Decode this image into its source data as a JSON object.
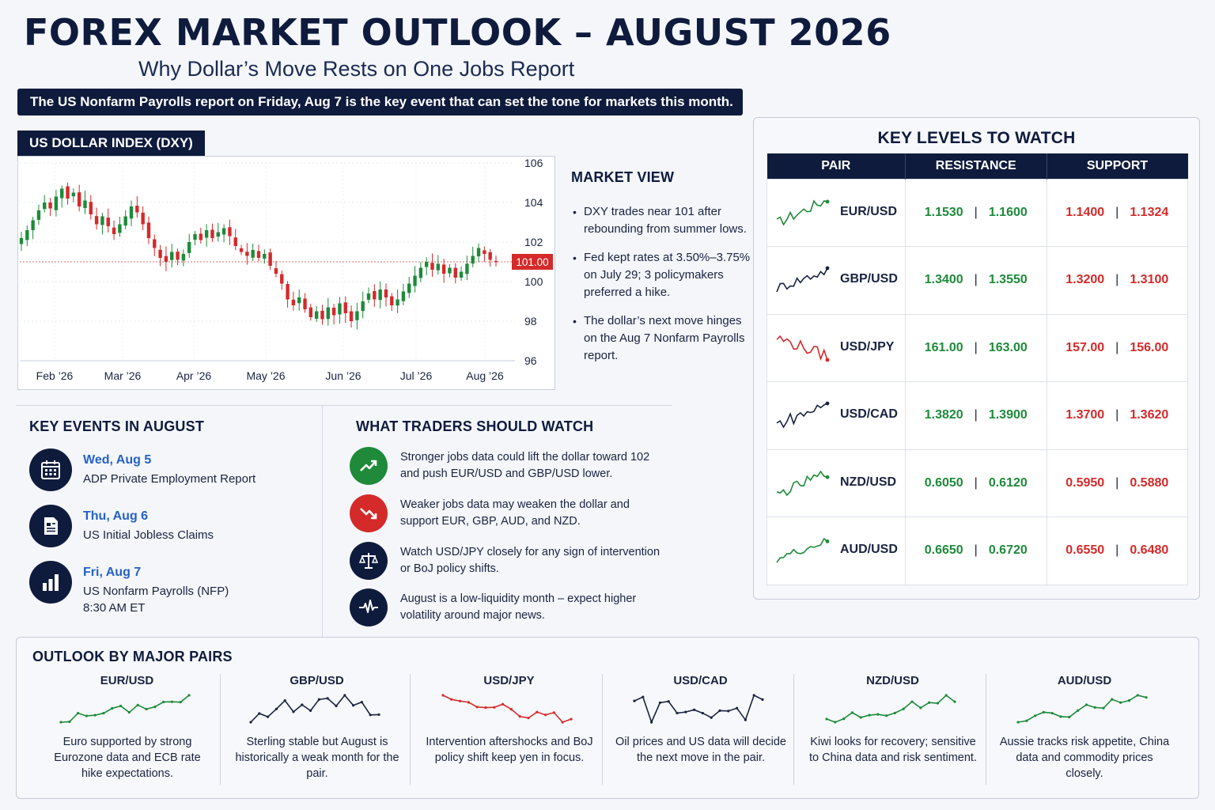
{
  "header": {
    "title": "FOREX MARKET OUTLOOK – AUGUST 2026",
    "subtitle": "Why Dollar’s Move Rests on One Jobs Report",
    "banner": "The US Nonfarm Payrolls report on Friday, Aug 7 is the key event that can set the tone for markets this month."
  },
  "chart_data": {
    "type": "candlestick",
    "title": "US DOLLAR INDEX (DXY)",
    "x_labels": [
      "Feb ’26",
      "Mar ’26",
      "Apr ’26",
      "May ’26",
      "Jun ’26",
      "Jul ’26",
      "Aug ’26"
    ],
    "y_ticks": [
      96,
      98,
      100,
      102,
      104,
      106
    ],
    "ylim": [
      96,
      106
    ],
    "current_value_label": "101.00",
    "current_value": 101.0,
    "approx_closes": [
      102.2,
      102.6,
      103.1,
      103.6,
      104.0,
      103.7,
      104.3,
      104.7,
      104.2,
      104.5,
      103.8,
      104.1,
      103.4,
      102.9,
      103.3,
      102.8,
      102.4,
      102.9,
      103.3,
      103.8,
      103.5,
      102.9,
      102.2,
      101.7,
      101.2,
      101.0,
      101.5,
      101.1,
      101.4,
      102.0,
      102.4,
      102.1,
      102.6,
      102.2,
      102.5,
      102.7,
      102.3,
      101.8,
      101.5,
      101.3,
      101.6,
      101.2,
      101.4,
      100.8,
      100.4,
      99.9,
      99.1,
      98.8,
      99.2,
      98.6,
      98.2,
      98.5,
      98.1,
      98.7,
      98.3,
      98.9,
      98.4,
      98.0,
      98.5,
      99.0,
      99.4,
      99.1,
      99.6,
      99.2,
      98.8,
      99.1,
      99.5,
      99.9,
      100.3,
      100.7,
      101.0,
      100.6,
      100.9,
      100.4,
      100.7,
      100.2,
      100.5,
      100.9,
      101.3,
      101.7,
      101.4,
      101.1,
      101.0
    ]
  },
  "market_view": {
    "title": "MARKET VIEW",
    "points": [
      "DXY trades near 101 after rebounding from summer lows.",
      "Fed kept rates at 3.50%–3.75% on July 29; 3 policymakers preferred a hike.",
      "The dollar’s next move hinges on the Aug 7 Nonfarm Payrolls report."
    ]
  },
  "key_levels": {
    "title": "KEY LEVELS TO WATCH",
    "columns": [
      "PAIR",
      "RESISTANCE",
      "SUPPORT"
    ],
    "rows": [
      {
        "pair": "EUR/USD",
        "trend_color": "#1e8a3a",
        "r1": "1.1530",
        "r2": "1.1600",
        "s1": "1.1400",
        "s2": "1.1324"
      },
      {
        "pair": "GBP/USD",
        "trend_color": "#1a2340",
        "r1": "1.3400",
        "r2": "1.3550",
        "s1": "1.3200",
        "s2": "1.3100"
      },
      {
        "pair": "USD/JPY",
        "trend_color": "#d42a2a",
        "r1": "161.00",
        "r2": "163.00",
        "s1": "157.00",
        "s2": "156.00"
      },
      {
        "pair": "USD/CAD",
        "trend_color": "#1a2340",
        "r1": "1.3820",
        "r2": "1.3900",
        "s1": "1.3700",
        "s2": "1.3620"
      },
      {
        "pair": "NZD/USD",
        "trend_color": "#1e8a3a",
        "r1": "0.6050",
        "r2": "0.6120",
        "s1": "0.5950",
        "s2": "0.5880"
      },
      {
        "pair": "AUD/USD",
        "trend_color": "#1e8a3a",
        "r1": "0.6650",
        "r2": "0.6720",
        "s1": "0.6550",
        "s2": "0.6480"
      }
    ],
    "separator": "|"
  },
  "key_events": {
    "title": "KEY EVENTS IN AUGUST",
    "items": [
      {
        "date": "Wed, Aug 5",
        "desc": "ADP Private Employment Report",
        "icon": "calendar-icon"
      },
      {
        "date": "Thu, Aug 6",
        "desc": "US Initial Jobless Claims",
        "icon": "document-icon"
      },
      {
        "date": "Fri, Aug 7",
        "desc": "US Nonfarm Payrolls (NFP)",
        "desc2": "8:30 AM ET",
        "icon": "bar-chart-icon"
      }
    ]
  },
  "traders_watch": {
    "title": "WHAT TRADERS SHOULD WATCH",
    "items": [
      {
        "text": "Stronger jobs data could lift the dollar toward 102 and push EUR/USD and GBP/USD lower.",
        "icon": "trend-up-icon",
        "color": "#1e8a3a"
      },
      {
        "text": "Weaker jobs data may weaken the dollar and support EUR, GBP, AUD, and NZD.",
        "icon": "trend-down-icon",
        "color": "#d42a2a"
      },
      {
        "text": "Watch USD/JPY closely for any sign of intervention or BoJ policy shifts.",
        "icon": "balance-scale-icon",
        "color": "#0f1b3d"
      },
      {
        "text": "August is a low-liquidity month – expect higher volatility around major news.",
        "icon": "pulse-icon",
        "color": "#0f1b3d"
      }
    ]
  },
  "outlook": {
    "title": "OUTLOOK BY MAJOR PAIRS",
    "pairs": [
      {
        "pair": "EUR/USD",
        "color": "#1e8a3a",
        "text": "Euro supported by strong Eurozone data and ECB rate hike expectations."
      },
      {
        "pair": "GBP/USD",
        "color": "#1a2340",
        "text": "Sterling stable but August is historically a weak month for the pair."
      },
      {
        "pair": "USD/JPY",
        "color": "#d42a2a",
        "text": "Intervention aftershocks and BoJ policy shift keep yen in focus."
      },
      {
        "pair": "USD/CAD",
        "color": "#1a2340",
        "text": "Oil prices and US data will decide the next move in the pair."
      },
      {
        "pair": "NZD/USD",
        "color": "#1e8a3a",
        "text": "Kiwi looks for recovery; sensitive to China data and risk sentiment."
      },
      {
        "pair": "AUD/USD",
        "color": "#1e8a3a",
        "text": "Aussie tracks risk appetite, China data and commodity prices closely."
      }
    ]
  }
}
